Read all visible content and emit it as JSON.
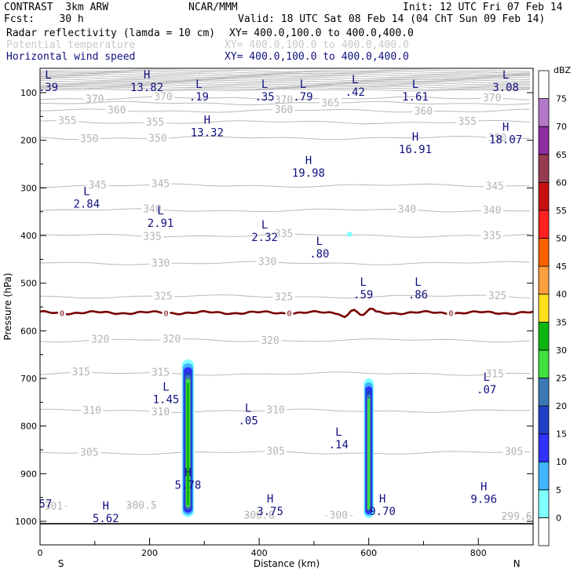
{
  "header": {
    "model": "CONTRAST  3km ARW",
    "org": "NCAR/MMM",
    "init": "Init: 12 UTC Fri 07 Feb 14",
    "fcst": "Fcst:    30 h",
    "valid": "Valid: 18 UTC Sat 08 Feb 14 (04 ChT Sun 09 Feb 14)",
    "fields": [
      {
        "name": "Radar reflectivity (lamda = 10 cm)",
        "xy": "XY= 400.0,100.0 to 400.0,400.0",
        "color": "#000000"
      },
      {
        "name": "Potential temperature",
        "xy": "XY= 400.0,100.0 to 400.0,400.0",
        "color": "#c8c8c8"
      },
      {
        "name": "Horizontal wind speed",
        "xy": "XY= 400.0,100.0 to 400.0,400.0",
        "color": "#101080"
      }
    ]
  },
  "chart_data": {
    "type": "heatmap",
    "title": "",
    "xlabel": "Distance (km)",
    "ylabel": "Pressure (hPa)",
    "xlim": [
      0,
      900
    ],
    "ylim": [
      1050,
      55
    ],
    "x_ticks": [
      0,
      200,
      400,
      600,
      800
    ],
    "y_ticks": [
      100,
      200,
      300,
      400,
      500,
      600,
      700,
      800,
      900,
      1000
    ],
    "x_end_labels": {
      "left": "S",
      "right": "N"
    },
    "colorbar": {
      "unit": "dBZ",
      "levels": [
        0,
        5,
        10,
        15,
        20,
        25,
        30,
        35,
        40,
        45,
        50,
        55,
        60,
        65,
        70,
        75
      ],
      "colors": [
        "#ffffff",
        "#80ffff",
        "#40b4ff",
        "#3030ff",
        "#2040c8",
        "#3c78b4",
        "#40e040",
        "#10b410",
        "#ffe020",
        "#ffa040",
        "#ff6000",
        "#ff2020",
        "#c81010",
        "#963c50",
        "#8c2da0",
        "#b478c8",
        "#ffffff"
      ]
    },
    "theta_contours": [
      {
        "value": 370,
        "p": 112,
        "labels_x": [
          100,
          225,
          445,
          825
        ]
      },
      {
        "value": 365,
        "p": 122,
        "labels_x": [
          530
        ]
      },
      {
        "value": 360,
        "p": 138,
        "labels_x": [
          140,
          445,
          700
        ]
      },
      {
        "value": 355,
        "p": 162,
        "labels_x": [
          50,
          210,
          780
        ]
      },
      {
        "value": 350,
        "p": 195,
        "labels_x": [
          90,
          215,
          835
        ]
      },
      {
        "value": 345,
        "p": 295,
        "labels_x": [
          105,
          220,
          830
        ]
      },
      {
        "value": 340,
        "p": 347,
        "labels_x": [
          205,
          670,
          825
        ]
      },
      {
        "value": 335,
        "p": 400,
        "labels_x": [
          205,
          445,
          825
        ]
      },
      {
        "value": 330,
        "p": 458,
        "labels_x": [
          220,
          415
        ]
      },
      {
        "value": 325,
        "p": 528,
        "labels_x": [
          225,
          445,
          835
        ]
      },
      {
        "value": 320,
        "p": 620,
        "labels_x": [
          110,
          240,
          420
        ]
      },
      {
        "value": 315,
        "p": 690,
        "labels_x": [
          75,
          220,
          830
        ]
      },
      {
        "value": 310,
        "p": 768,
        "labels_x": [
          95,
          220,
          430
        ]
      },
      {
        "value": 305,
        "p": 856,
        "labels_x": [
          90,
          430,
          865
        ]
      },
      {
        "value": 301,
        "p": 968,
        "labels_x": [
          25
        ]
      },
      {
        "value": 300.5,
        "p": 968,
        "labels_x": [
          185
        ]
      },
      {
        "value": 300.8,
        "p": 988,
        "labels_x": [
          400
        ]
      },
      {
        "value": 300,
        "p": 988,
        "labels_x": [
          545
        ]
      },
      {
        "value": 299.6,
        "p": 990,
        "labels_x": [
          870
        ]
      }
    ],
    "zero_contour": {
      "p": 562,
      "labels_x": [
        40,
        230,
        455,
        750
      ],
      "color": "#780000"
    },
    "wind_extrema": [
      {
        "type": "L",
        "value": ".39",
        "x": 15,
        "p": 85
      },
      {
        "type": "H",
        "value": "13.82",
        "x": 195,
        "p": 85
      },
      {
        "type": "L",
        "value": ".19",
        "x": 290,
        "p": 105
      },
      {
        "type": "L",
        "value": ".35",
        "x": 410,
        "p": 105
      },
      {
        "type": "L",
        "value": ".79",
        "x": 480,
        "p": 105
      },
      {
        "type": "L",
        "value": ".42",
        "x": 575,
        "p": 95
      },
      {
        "type": "L",
        "value": "1.61",
        "x": 685,
        "p": 105
      },
      {
        "type": "L",
        "value": "3.08",
        "x": 850,
        "p": 85
      },
      {
        "type": "H",
        "value": "13.32",
        "x": 305,
        "p": 180
      },
      {
        "type": "H",
        "value": "19.98",
        "x": 490,
        "p": 265
      },
      {
        "type": "H",
        "value": "16.91",
        "x": 685,
        "p": 215
      },
      {
        "type": "H",
        "value": "18.07",
        "x": 850,
        "p": 195
      },
      {
        "type": "L",
        "value": "2.84",
        "x": 85,
        "p": 330
      },
      {
        "type": "L",
        "value": "2.91",
        "x": 220,
        "p": 370
      },
      {
        "type": "L",
        "value": "2.32",
        "x": 410,
        "p": 400
      },
      {
        "type": "L",
        "value": ".80",
        "x": 510,
        "p": 435
      },
      {
        "type": "L",
        "value": ".59",
        "x": 590,
        "p": 520
      },
      {
        "type": "L",
        "value": ".86",
        "x": 690,
        "p": 520
      },
      {
        "type": "L",
        "value": "1.45",
        "x": 230,
        "p": 740
      },
      {
        "type": "L",
        "value": ".05",
        "x": 380,
        "p": 785
      },
      {
        "type": "L",
        "value": ".14",
        "x": 545,
        "p": 835
      },
      {
        "type": "L",
        "value": ".07",
        "x": 815,
        "p": 720
      },
      {
        "type": "H",
        "value": "5.78",
        "x": 270,
        "p": 920
      },
      {
        "type": "H",
        "value": "3.75",
        "x": 420,
        "p": 975
      },
      {
        "type": "H",
        "value": "9.70",
        "x": 625,
        "p": 975
      },
      {
        "type": "H",
        "value": "9.96",
        "x": 810,
        "p": 950
      },
      {
        "type": "H",
        "value": "5.62",
        "x": 120,
        "p": 990
      },
      {
        "type": "",
        "value": "57",
        "x": 10,
        "p": 960
      }
    ],
    "reflectivity_cells": [
      {
        "x": 270,
        "half_width_km": 11,
        "p_top": 660,
        "p_bottom": 1005,
        "max_dBZ": 35
      },
      {
        "x": 600,
        "half_width_km": 9,
        "p_top": 700,
        "p_bottom": 1005,
        "max_dBZ": 30
      },
      {
        "x": 565,
        "half_width_km": 5,
        "p_top": 392,
        "p_bottom": 403,
        "max_dBZ": 5
      }
    ]
  }
}
